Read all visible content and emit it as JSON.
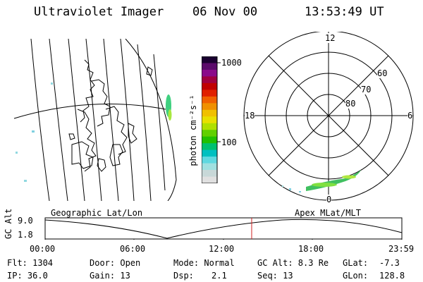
{
  "header": {
    "instrument": "Ultraviolet Imager",
    "date": "06 Nov 00",
    "time": "13:53:49 UT"
  },
  "colorbar": {
    "label": "photon cm⁻²s⁻¹",
    "ticks": [
      "1000",
      "100"
    ],
    "colors": [
      "#1a0030",
      "#5a0a6a",
      "#8a0a8a",
      "#a00040",
      "#c00000",
      "#e02000",
      "#f06000",
      "#f09000",
      "#f0c000",
      "#e8e000",
      "#b0e000",
      "#60d000",
      "#20c000",
      "#00c070",
      "#00c0c0",
      "#60d8e0",
      "#a0e0e0",
      "#c8d8d8",
      "#e0e0e0"
    ]
  },
  "polar": {
    "mlt_labels": {
      "top": "12",
      "left": "18",
      "right": "6",
      "bottom": "0"
    },
    "lat_labels": [
      "60",
      "70",
      "80"
    ]
  },
  "timeline": {
    "left_title": "Geographic Lat/Lon",
    "right_title": "Apex MLat/MLT",
    "axis_label": "GC Alt",
    "y_top": "9.0",
    "y_bottom": "1.8",
    "x_ticks": [
      "00:00",
      "06:00",
      "12:00",
      "18:00",
      "23:59"
    ],
    "current_fraction": 0.579,
    "marker_color": "#d02020"
  },
  "status": {
    "flt": "Flt: 1304",
    "ip": "IP: 36.0",
    "door": "Door: Open",
    "gain": "Gain: 13",
    "mode": "Mode: Normal",
    "dsp_label": "Dsp:",
    "dsp_value": "2.1",
    "gc_alt": "GC Alt: 8.3 Re",
    "seq": "Seq: 13",
    "glat_label": "GLat:",
    "glat_value": "-7.3",
    "glon_label": "GLon:",
    "glon_value": "128.8"
  }
}
